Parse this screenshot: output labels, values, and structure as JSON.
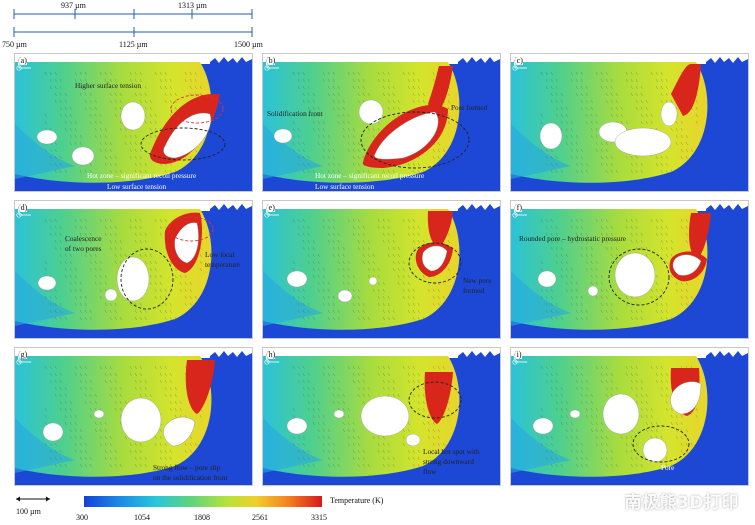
{
  "top_scale": {
    "upper_ticks": [
      "937 µm",
      "1313 µm"
    ],
    "lower_ticks": [
      "750 µm",
      "1125 µm",
      "1500 µm"
    ]
  },
  "panels": [
    {
      "id": "a",
      "label": "(a)",
      "annotations": [
        "Higher surface tension",
        "Hot zone – significant recoil pressure",
        "Low surface tension"
      ]
    },
    {
      "id": "b",
      "label": "(b)",
      "annotations": [
        "Solidification front",
        "Pore formed",
        "Hot zone – significant recoil pressure",
        "Low surface tension"
      ]
    },
    {
      "id": "c",
      "label": "(c)",
      "annotations": []
    },
    {
      "id": "d",
      "label": "(d)",
      "annotations": [
        "Coalescence",
        "of two pores",
        "Low local",
        "temperature"
      ]
    },
    {
      "id": "e",
      "label": "(e)",
      "annotations": [
        "New pore",
        "formed"
      ]
    },
    {
      "id": "f",
      "label": "(f)",
      "annotations": [
        "Rounded pore – hydrostatic pressure"
      ]
    },
    {
      "id": "g",
      "label": "(g)",
      "annotations": [
        "Strong flow – pore slip",
        "on the solidification front"
      ]
    },
    {
      "id": "h",
      "label": "(h)",
      "annotations": [
        "Local hot spot with",
        "strong downward",
        "flow"
      ]
    },
    {
      "id": "i",
      "label": "(i)",
      "annotations": [
        "Pore"
      ]
    }
  ],
  "scale_bar": "100 µm",
  "colorbar": {
    "title": "Temperature (K)",
    "ticks": [
      "300",
      "1054",
      "1808",
      "2561",
      "3315"
    ]
  },
  "watermark": "南极熊3D打印"
}
